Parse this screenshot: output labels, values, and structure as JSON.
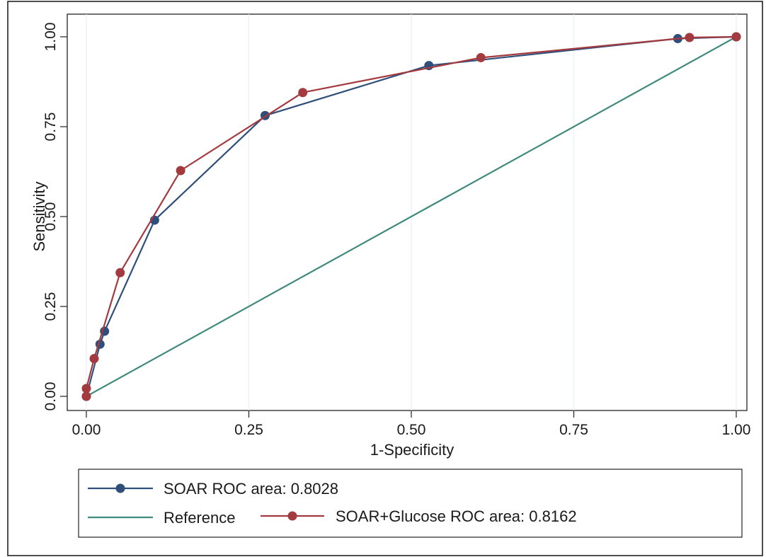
{
  "chart_data": {
    "type": "line",
    "title": "",
    "xlabel": "1-Specificity",
    "ylabel": "Sensitivity",
    "xlim": [
      0,
      1
    ],
    "ylim": [
      0,
      1
    ],
    "x_ticks": [
      "0.00",
      "0.25",
      "0.50",
      "0.75",
      "1.00"
    ],
    "y_ticks": [
      "0.00",
      "0.25",
      "0.50",
      "0.75",
      "1.00"
    ],
    "grid": "vertical",
    "legend_position": "bottom",
    "legend": [
      {
        "label": "SOAR ROC area: 0.8028",
        "series": "soar",
        "marker": true
      },
      {
        "label": "Reference",
        "series": "reference",
        "marker": false
      },
      {
        "label": "SOAR+Glucose ROC area: 0.8162",
        "series": "soar_glucose",
        "marker": true
      }
    ],
    "series": [
      {
        "id": "soar",
        "color": "#2f4f7a",
        "markers": true,
        "x": [
          0.0,
          0.021,
          0.028,
          0.105,
          0.275,
          0.527,
          0.91,
          1.0
        ],
        "y": [
          0.0,
          0.145,
          0.181,
          0.49,
          0.781,
          0.92,
          0.995,
          1.0
        ]
      },
      {
        "id": "soar_glucose",
        "color": "#a33a3f",
        "markers": true,
        "x": [
          0.0,
          0.0,
          0.012,
          0.052,
          0.145,
          0.333,
          0.607,
          0.928,
          1.0
        ],
        "y": [
          0.0,
          0.022,
          0.105,
          0.344,
          0.628,
          0.845,
          0.942,
          0.998,
          1.0
        ]
      },
      {
        "id": "reference",
        "color": "#3f8a7c",
        "markers": false,
        "x": [
          0.0,
          1.0
        ],
        "y": [
          0.0,
          1.0
        ]
      }
    ]
  }
}
